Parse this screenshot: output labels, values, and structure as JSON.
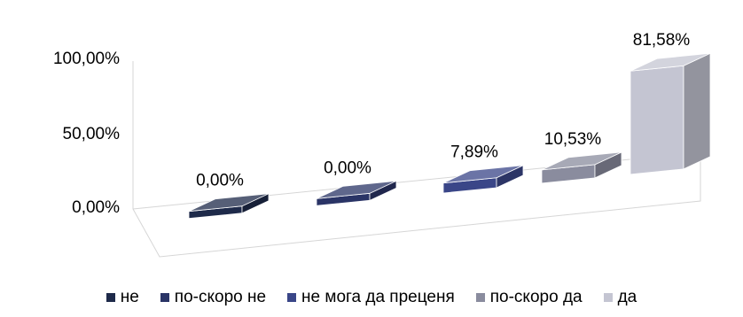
{
  "chart_data": {
    "type": "bar",
    "categories": [
      "не",
      "по-скоро не",
      "не мога да преценя",
      "по-скоро да",
      "да"
    ],
    "values": [
      0.0,
      0.0,
      7.89,
      10.53,
      81.58
    ],
    "data_labels": [
      "0,00%",
      "0,00%",
      "7,89%",
      "10,53%",
      "81,58%"
    ],
    "y_ticks": [
      "0,00%",
      "50,00%",
      "100,00%"
    ],
    "ylim": [
      0,
      100
    ],
    "colors": [
      "#1e2a4a",
      "#2a3466",
      "#3a4688",
      "#8a8c9e",
      "#c4c5d2"
    ],
    "legend_position": "bottom",
    "grid": false,
    "style": "3d"
  }
}
